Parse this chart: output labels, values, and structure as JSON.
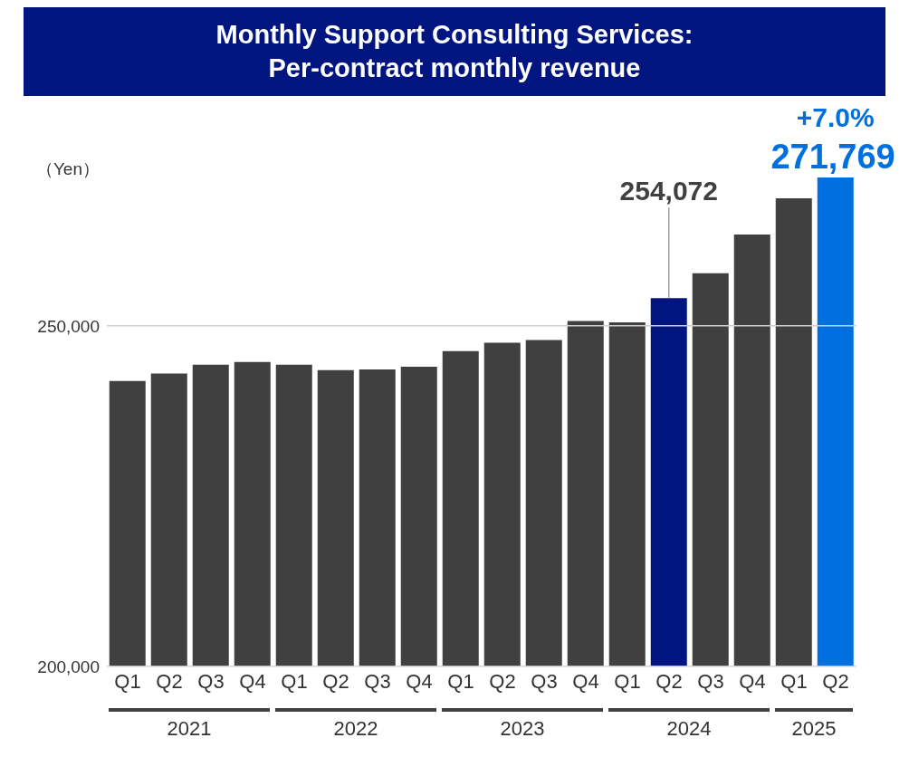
{
  "chart_data": {
    "type": "bar",
    "title": "Monthly Support Consulting Services:\nPer-contract monthly revenue",
    "ylabel": "（Yen）",
    "categories": [
      "Q1",
      "Q2",
      "Q3",
      "Q4",
      "Q1",
      "Q2",
      "Q3",
      "Q4",
      "Q1",
      "Q2",
      "Q3",
      "Q4",
      "Q1",
      "Q2",
      "Q3",
      "Q4",
      "Q1",
      "Q2"
    ],
    "values": [
      241900,
      243000,
      244300,
      244700,
      244300,
      243500,
      243600,
      244000,
      246300,
      247500,
      247900,
      250700,
      250500,
      254072,
      257700,
      263400,
      268700,
      271769
    ],
    "colors": [
      "#404040",
      "#404040",
      "#404040",
      "#404040",
      "#404040",
      "#404040",
      "#404040",
      "#404040",
      "#404040",
      "#404040",
      "#404040",
      "#404040",
      "#404040",
      "#001580",
      "#404040",
      "#404040",
      "#404040",
      "#0070e0"
    ],
    "value_labels": [
      null,
      null,
      null,
      null,
      null,
      null,
      null,
      null,
      null,
      null,
      null,
      null,
      null,
      "254,072",
      null,
      null,
      null,
      "271,769"
    ],
    "annotations": [
      "+7.0%",
      "2021",
      "2022",
      "2023",
      "2024",
      "2025"
    ],
    "ylim": [
      200000,
      271769
    ],
    "yticks": [
      {
        "value": 200000,
        "label": "200,000"
      },
      {
        "value": 250000,
        "label": "250,000"
      }
    ],
    "grid": "y",
    "legend": false
  }
}
